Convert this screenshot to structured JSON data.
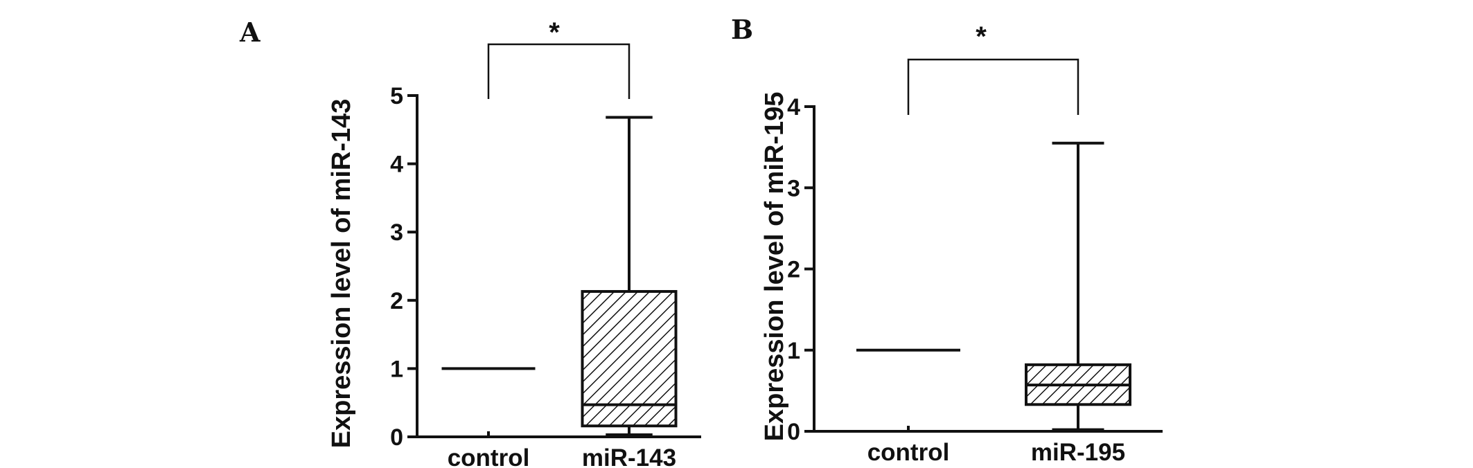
{
  "chart_data": [
    {
      "type": "box",
      "panel": "A",
      "xlabel": "",
      "ylabel": "Expression level of miR-143",
      "ylim": [
        0,
        5
      ],
      "yticks": [
        "0",
        "1",
        "2",
        "3",
        "4",
        "5"
      ],
      "categories": [
        "control",
        "miR-143"
      ],
      "boxes": [
        {
          "category": "control",
          "min": 1,
          "q1": 1,
          "median": 1,
          "q3": 1,
          "max": 1,
          "fill": "none"
        },
        {
          "category": "miR-143",
          "min": 0.03,
          "q1": 0.16,
          "median": 0.47,
          "q3": 2.13,
          "max": 4.68,
          "fill": "hatched"
        }
      ],
      "significance": "*"
    },
    {
      "type": "box",
      "panel": "B",
      "xlabel": "",
      "ylabel": "Expression level of miR-195",
      "ylim": [
        0,
        4
      ],
      "yticks": [
        "0",
        "1",
        "2",
        "3",
        "4"
      ],
      "categories": [
        "control",
        "miR-195"
      ],
      "boxes": [
        {
          "category": "control",
          "min": 1,
          "q1": 1,
          "median": 1,
          "q3": 1,
          "max": 1,
          "fill": "none"
        },
        {
          "category": "miR-195",
          "min": 0.02,
          "q1": 0.33,
          "median": 0.57,
          "q3": 0.82,
          "max": 3.55,
          "fill": "hatched"
        }
      ],
      "significance": "*"
    }
  ],
  "colors": {
    "ink": "#111111",
    "background": "#ffffff"
  }
}
